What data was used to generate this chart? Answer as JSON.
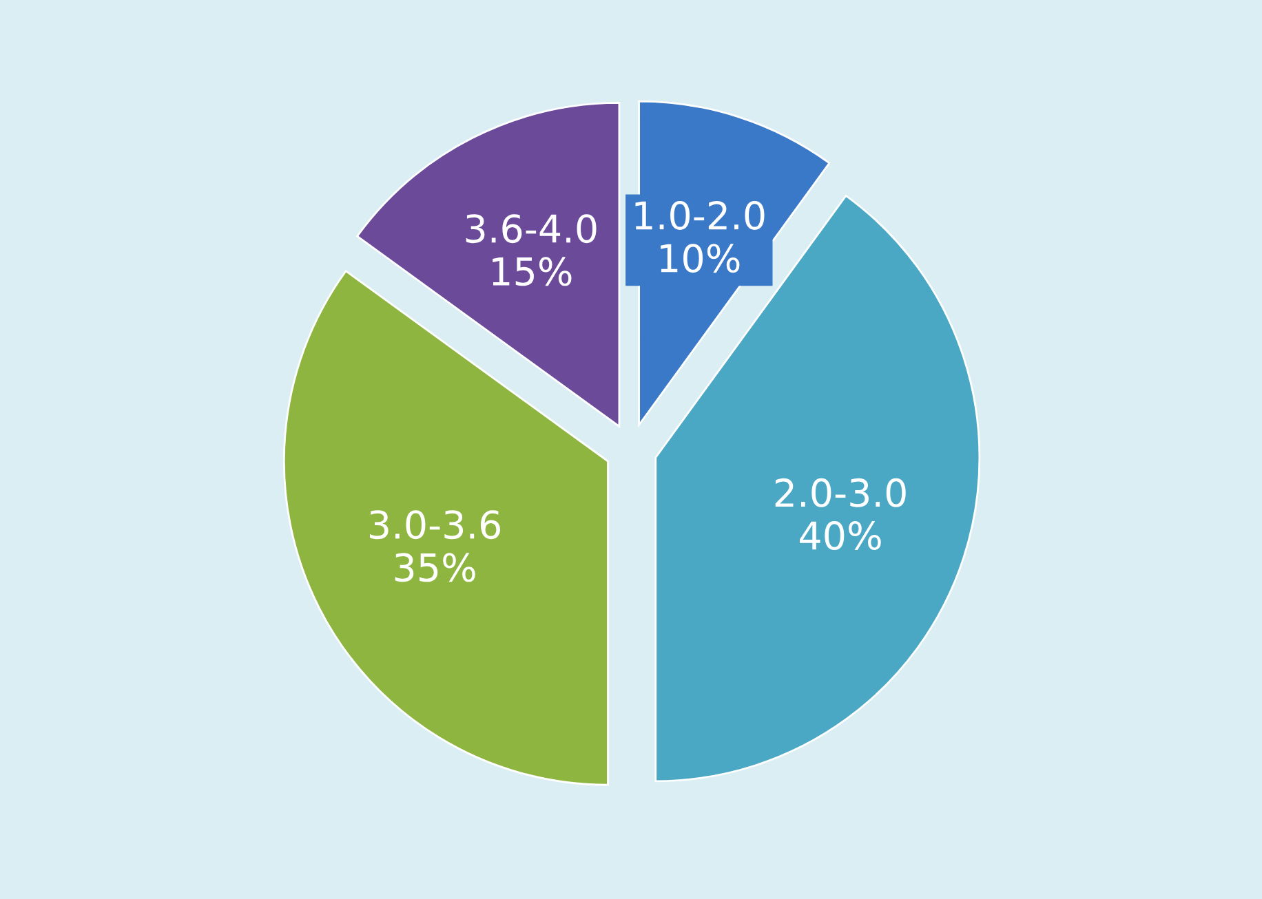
{
  "chart_data": {
    "type": "pie",
    "categories": [
      "1.0-2.0",
      "2.0-3.0",
      "3.0-3.6",
      "3.6-4.0"
    ],
    "values": [
      10,
      40,
      35,
      15
    ],
    "value_labels": [
      "10%",
      "40%",
      "35%",
      "15%"
    ],
    "colors": [
      "#3a78c8",
      "#4aa8c4",
      "#8db540",
      "#6b4a9a"
    ]
  }
}
